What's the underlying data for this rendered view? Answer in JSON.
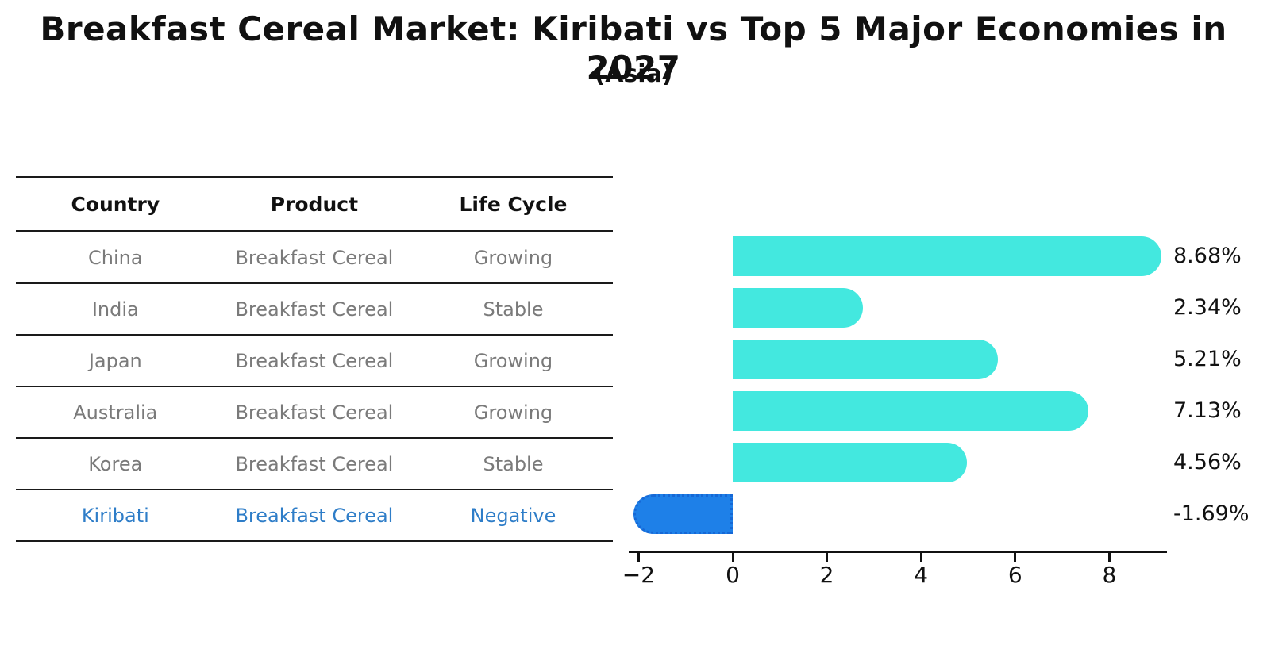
{
  "title": "Breakfast Cereal Market: Kiribati vs Top 5 Major Economies in 2027",
  "subtitle": "(Asia)",
  "table": {
    "headers": [
      "Country",
      "Product",
      "Life Cycle"
    ],
    "rows": [
      {
        "country": "China",
        "product": "Breakfast Cereal",
        "life_cycle": "Growing",
        "highlight": false
      },
      {
        "country": "India",
        "product": "Breakfast Cereal",
        "life_cycle": "Stable",
        "highlight": false
      },
      {
        "country": "Japan",
        "product": "Breakfast Cereal",
        "life_cycle": "Growing",
        "highlight": false
      },
      {
        "country": "Australia",
        "product": "Breakfast Cereal",
        "life_cycle": "Growing",
        "highlight": false
      },
      {
        "country": "Korea",
        "product": "Breakfast Cereal",
        "life_cycle": "Stable",
        "highlight": false
      },
      {
        "country": "Kiribati",
        "product": "Breakfast Cereal",
        "life_cycle": "Negative",
        "highlight": true
      }
    ]
  },
  "chart_data": {
    "type": "bar",
    "orientation": "horizontal",
    "categories": [
      "China",
      "India",
      "Japan",
      "Australia",
      "Korea",
      "Kiribati"
    ],
    "values": [
      8.68,
      2.34,
      5.21,
      7.13,
      4.56,
      -1.69
    ],
    "value_labels": [
      "8.68%",
      "2.34%",
      "5.21%",
      "7.13%",
      "4.56%",
      "-1.69%"
    ],
    "x_tick_values": [
      -2,
      0,
      2,
      4,
      6,
      8
    ],
    "x_tick_labels": [
      "−2",
      "0",
      "2",
      "4",
      "6",
      "8"
    ],
    "xlim": [
      -2.2,
      9.2
    ],
    "grid": false,
    "legend": "none",
    "title": "Breakfast Cereal Market: Kiribati vs Top 5 Major Economies in 2027",
    "subtitle": "(Asia)",
    "xlabel": "",
    "ylabel": "",
    "bar_color_positive": "#43e8df",
    "bar_color_negative": "#1e80e8",
    "negative_bar_border": "dotted",
    "highlight_category": "Kiribati",
    "highlight_text_color": "#2e7dc8",
    "value_suffix": "%"
  }
}
